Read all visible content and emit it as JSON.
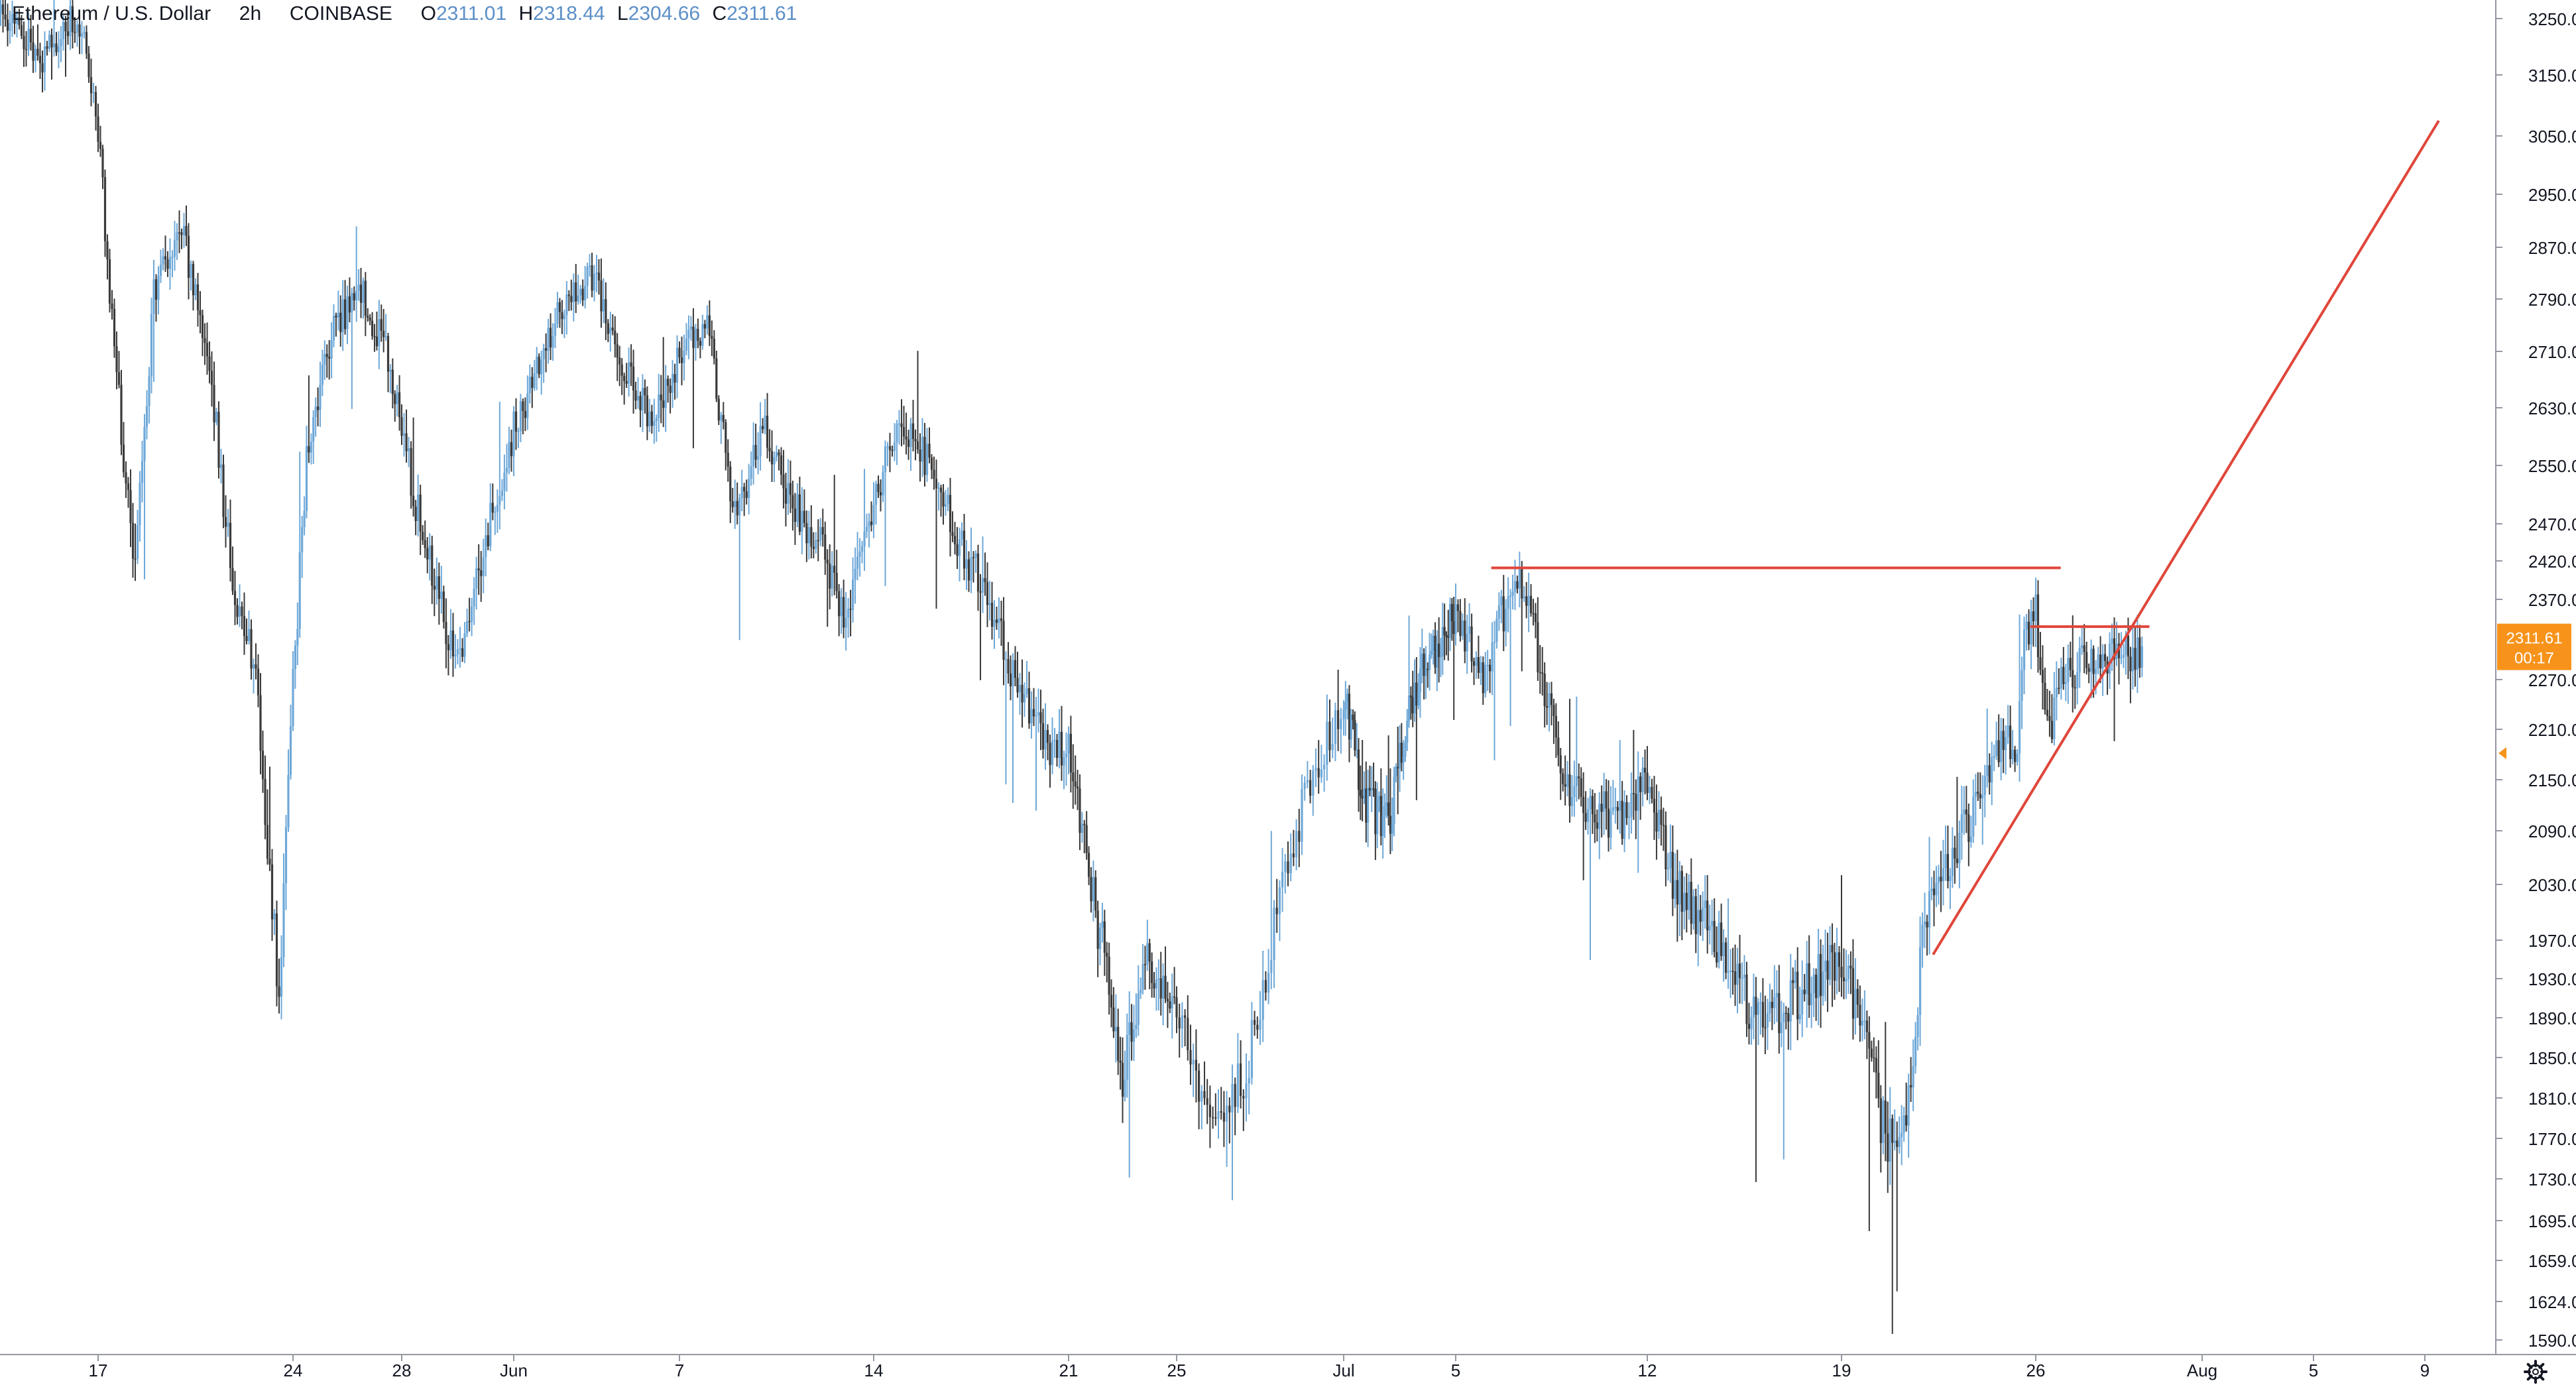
{
  "header": {
    "symbol": "Ethereum / U.S. Dollar",
    "interval": "2h",
    "exchange": "COINBASE",
    "ohlc": {
      "o_label": "O",
      "o_value": "2311.01",
      "h_label": "H",
      "h_value": "2318.44",
      "l_label": "L",
      "l_value": "2304.66",
      "c_label": "C",
      "c_value": "2311.61"
    }
  },
  "price_badge": {
    "price": "2311.61",
    "countdown": "00:17",
    "color": "#f7931a"
  },
  "colors": {
    "candle_up": "#6ea8d8",
    "candle_down": "#3a3a3a",
    "drawing": "#e0463a",
    "axis_text": "#131722",
    "axis_line": "#9598a1"
  },
  "settings_icon": "gear-icon",
  "chart_data": {
    "type": "candlestick",
    "title": "",
    "xlabel": "",
    "ylabel": "",
    "ylim": [
      1572,
      3260
    ],
    "xlim": [
      13,
      79
    ],
    "x_tick_labels": [
      "17",
      "24",
      "28",
      "Jun",
      "7",
      "14",
      "21",
      "25",
      "Jul",
      "5",
      "12",
      "19",
      "26",
      "Aug",
      "5",
      "9"
    ],
    "x_tick_days": [
      17,
      24,
      28,
      32,
      38,
      45,
      52,
      56,
      61,
      66,
      73,
      80,
      87,
      93,
      97,
      101
    ],
    "y_tick_labels": [
      "3250.00",
      "3150.00",
      "3050.00",
      "2950.00",
      "2870.00",
      "2790.00",
      "2710.00",
      "2630.00",
      "2550.00",
      "2470.00",
      "2420.00",
      "2370.00",
      "2270.00",
      "2210.00",
      "2150.00",
      "2090.00",
      "2030.00",
      "1970.00",
      "1930.00",
      "1890.00",
      "1850.00",
      "1810.00",
      "1770.00",
      "1730.00",
      "1695.00",
      "1659.00",
      "1624.00",
      "1590.00"
    ],
    "close_path_days": [
      13,
      14,
      15,
      16,
      16.5,
      17,
      17.6,
      18.3,
      18.6,
      19,
      20,
      21,
      21.5,
      22,
      22.6,
      23.5,
      23.8,
      24.5,
      25.5,
      26.5,
      27.5,
      28.5,
      29.5,
      30,
      31,
      32,
      33,
      34,
      35,
      36,
      37,
      38,
      39,
      40,
      41,
      42,
      43,
      44,
      45,
      46,
      47,
      48,
      49,
      50,
      51,
      52,
      53,
      53.5,
      54,
      55,
      56,
      57,
      58,
      59,
      60,
      61,
      62,
      63,
      64,
      65,
      66,
      67,
      68,
      68.5,
      69,
      70,
      71,
      72,
      73,
      74,
      75,
      76,
      77,
      78,
      79,
      80,
      81,
      81.5,
      82,
      82.5,
      83,
      84,
      85,
      86,
      86.3,
      86.6,
      87,
      87.5,
      88,
      89,
      90,
      90.9
    ],
    "close_path_values": [
      3290,
      3230,
      3180,
      3250,
      3200,
      3050,
      2700,
      2400,
      2550,
      2800,
      2900,
      2700,
      2500,
      2350,
      2300,
      1900,
      2150,
      2550,
      2750,
      2800,
      2700,
      2500,
      2350,
      2300,
      2450,
      2600,
      2700,
      2800,
      2820,
      2680,
      2620,
      2700,
      2750,
      2480,
      2600,
      2500,
      2450,
      2350,
      2500,
      2620,
      2550,
      2450,
      2380,
      2280,
      2200,
      2180,
      2000,
      1930,
      1830,
      1950,
      1900,
      1800,
      1820,
      2000,
      2150,
      2250,
      2120,
      2100,
      2250,
      2300,
      2350,
      2280,
      2380,
      2400,
      2300,
      2150,
      2120,
      2100,
      2150,
      2030,
      1990,
      1950,
      1880,
      1900,
      1930,
      1950,
      1850,
      1780,
      1760,
      1830,
      2000,
      2060,
      2130,
      2200,
      2190,
      2330,
      2350,
      2200,
      2280,
      2290,
      2300,
      2311.61
    ],
    "drawings": [
      {
        "type": "horizontal_segment",
        "y": 2411,
        "x_start": 67.3,
        "x_end": 87.9
      },
      {
        "type": "horizontal_segment",
        "y": 2336,
        "x_start": 86.8,
        "x_end": 91.1
      },
      {
        "type": "trendline",
        "points": [
          [
            83.3,
            1955
          ],
          [
            101.5,
            3075
          ]
        ]
      }
    ],
    "last_close": 2311.61,
    "grid": false,
    "legend_position": "top-left"
  }
}
